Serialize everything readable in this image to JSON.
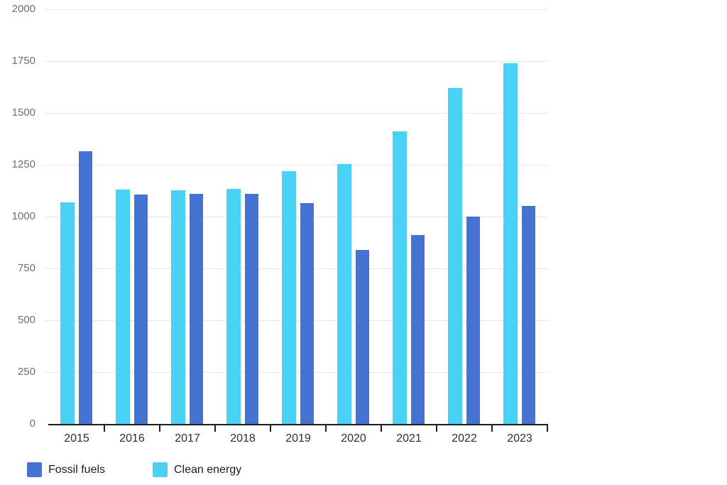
{
  "chart_data": {
    "type": "bar",
    "title": "",
    "xlabel": "",
    "ylabel": "",
    "categories": [
      "2015",
      "2016",
      "2017",
      "2018",
      "2019",
      "2020",
      "2021",
      "2022",
      "2023"
    ],
    "series": [
      {
        "name": "Clean energy",
        "color": "#49D1F6",
        "bar_slot": 0,
        "values": [
          1070,
          1130,
          1125,
          1135,
          1220,
          1255,
          1410,
          1620,
          1740
        ]
      },
      {
        "name": "Fossil fuels",
        "color": "#4573D2",
        "bar_slot": 1,
        "values": [
          1315,
          1105,
          1110,
          1110,
          1065,
          840,
          910,
          1000,
          1050
        ]
      }
    ],
    "ylim": [
      0,
      2000
    ],
    "yticks": [
      0,
      250,
      500,
      750,
      1000,
      1250,
      1500,
      1750,
      2000
    ],
    "grid": true,
    "legend_position": "bottom-left",
    "colors": {
      "background": "#ffffff",
      "grid": "#e8e8e8",
      "axis": "#1f1f1f",
      "y_tick_label": "#6f6f6f",
      "x_tick_label": "#2e2e2e",
      "legend_text": "#1c1c1c"
    }
  },
  "legend": {
    "items": [
      {
        "label": "Fossil fuels",
        "color": "#4573D2"
      },
      {
        "label": "Clean energy",
        "color": "#49D1F6"
      }
    ]
  }
}
